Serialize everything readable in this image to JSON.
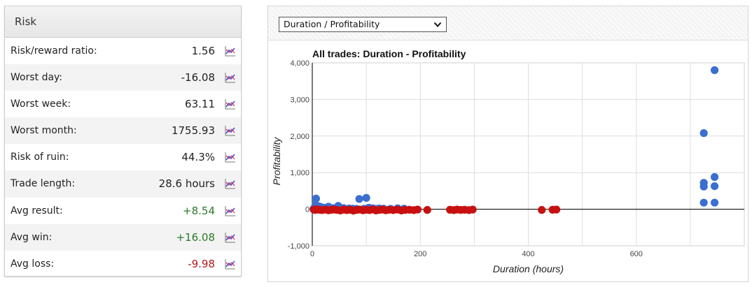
{
  "risk": {
    "title": "Risk",
    "rows": [
      {
        "label": "Risk/reward ratio:",
        "value": "1.56",
        "tone": "neutral"
      },
      {
        "label": "Worst day:",
        "value": "-16.08",
        "tone": "neutral"
      },
      {
        "label": "Worst week:",
        "value": "63.11",
        "tone": "neutral"
      },
      {
        "label": "Worst month:",
        "value": "1755.93",
        "tone": "neutral"
      },
      {
        "label": "Risk of ruin:",
        "value": "44.3%",
        "tone": "neutral"
      },
      {
        "label": "Trade length:",
        "value": "28.6 hours",
        "tone": "neutral"
      },
      {
        "label": "Avg result:",
        "value": "+8.54",
        "tone": "positive"
      },
      {
        "label": "Avg win:",
        "value": "+16.08",
        "tone": "positive"
      },
      {
        "label": "Avg loss:",
        "value": "-9.98",
        "tone": "negative"
      }
    ],
    "row_icon": "chart-trend-icon"
  },
  "chart_panel": {
    "selector": {
      "selected": "Duration / Profitability",
      "icon": "chevron-down-icon"
    }
  },
  "chart_data": {
    "type": "scatter",
    "title": "All trades: Duration - Profitability",
    "xlabel": "Duration (hours)",
    "ylabel": "Profitability",
    "xlim": [
      0,
      800
    ],
    "ylim": [
      -1000,
      4000
    ],
    "x_ticks": [
      "0",
      "200",
      "400",
      "600"
    ],
    "y_ticks": [
      "-1,000",
      "0",
      "1,000",
      "2,000",
      "3,000",
      "4,000"
    ],
    "grid": true,
    "colors": {
      "profit": "#3a6fd0",
      "loss": "#c81010"
    },
    "series": [
      {
        "role": "profit",
        "points": [
          [
            2,
            5
          ],
          [
            3,
            25
          ],
          [
            4,
            40
          ],
          [
            5,
            10
          ],
          [
            6,
            120
          ],
          [
            7,
            290
          ],
          [
            8,
            60
          ],
          [
            9,
            15
          ],
          [
            10,
            30
          ],
          [
            11,
            5
          ],
          [
            12,
            80
          ],
          [
            13,
            20
          ],
          [
            14,
            45
          ],
          [
            15,
            10
          ],
          [
            16,
            60
          ],
          [
            18,
            25
          ],
          [
            20,
            5
          ],
          [
            22,
            40
          ],
          [
            26,
            10
          ],
          [
            30,
            70
          ],
          [
            34,
            15
          ],
          [
            38,
            30
          ],
          [
            42,
            20
          ],
          [
            48,
            90
          ],
          [
            52,
            15
          ],
          [
            58,
            30
          ],
          [
            68,
            20
          ],
          [
            75,
            15
          ],
          [
            82,
            10
          ],
          [
            87,
            280
          ],
          [
            96,
            15
          ],
          [
            100,
            310
          ],
          [
            105,
            40
          ],
          [
            112,
            25
          ],
          [
            118,
            10
          ],
          [
            124,
            20
          ],
          [
            132,
            15
          ],
          [
            145,
            10
          ],
          [
            158,
            25
          ],
          [
            170,
            15
          ],
          [
            725,
            2080
          ],
          [
            725,
            720
          ],
          [
            725,
            620
          ],
          [
            725,
            180
          ],
          [
            745,
            3800
          ],
          [
            745,
            880
          ],
          [
            745,
            630
          ],
          [
            745,
            180
          ]
        ]
      },
      {
        "role": "loss",
        "points": [
          [
            3,
            -10
          ],
          [
            5,
            -20
          ],
          [
            8,
            -5
          ],
          [
            12,
            -15
          ],
          [
            18,
            -25
          ],
          [
            25,
            -10
          ],
          [
            30,
            -30
          ],
          [
            36,
            -15
          ],
          [
            40,
            -5
          ],
          [
            45,
            -20
          ],
          [
            52,
            -35
          ],
          [
            58,
            -10
          ],
          [
            64,
            -25
          ],
          [
            70,
            -15
          ],
          [
            76,
            -40
          ],
          [
            82,
            -20
          ],
          [
            88,
            -10
          ],
          [
            94,
            -30
          ],
          [
            100,
            -15
          ],
          [
            106,
            -25
          ],
          [
            112,
            -5
          ],
          [
            118,
            -35
          ],
          [
            124,
            -20
          ],
          [
            130,
            -10
          ],
          [
            136,
            -30
          ],
          [
            142,
            -15
          ],
          [
            150,
            -25
          ],
          [
            158,
            -10
          ],
          [
            165,
            -35
          ],
          [
            172,
            -20
          ],
          [
            180,
            -15
          ],
          [
            188,
            -25
          ],
          [
            195,
            -10
          ],
          [
            213,
            -20
          ],
          [
            255,
            -15
          ],
          [
            262,
            -25
          ],
          [
            268,
            -10
          ],
          [
            275,
            -20
          ],
          [
            282,
            -15
          ],
          [
            290,
            -25
          ],
          [
            297,
            -10
          ],
          [
            425,
            -20
          ],
          [
            445,
            -15
          ],
          [
            452,
            -10
          ]
        ]
      }
    ]
  }
}
